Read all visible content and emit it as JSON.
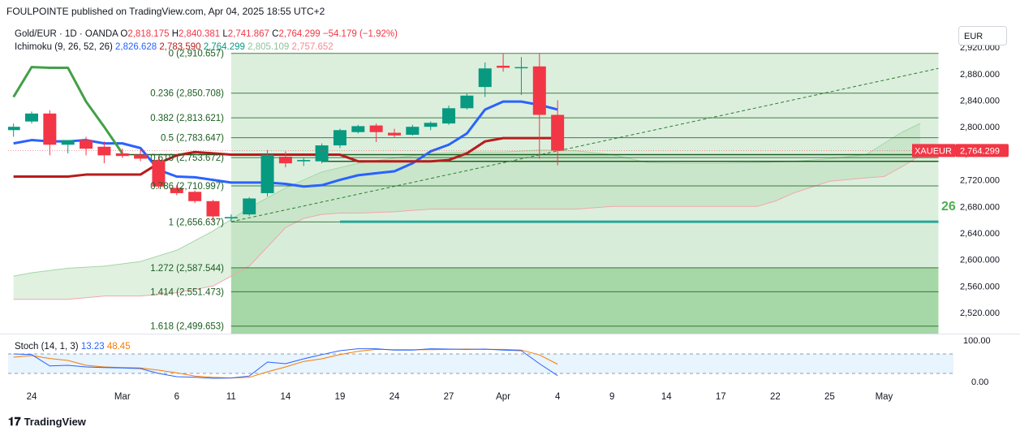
{
  "header": {
    "text": "FOULPOINTE published on TradingView.com, Apr 04, 2025 18:55 UTC+2"
  },
  "legend": {
    "symbol": "Gold/EUR · 1D · OANDA",
    "o_label": "O",
    "o": "2,818.175",
    "h_label": "H",
    "h": "2,840.381",
    "l_label": "L",
    "l": "2,741.867",
    "c_label": "C",
    "c": "2,764.299",
    "change": "−54.179 (−1.92%)",
    "ichimoku_label": "Ichimoku (9, 26, 52, 26)",
    "ichimoku_values": [
      "2,826.628",
      "2,783.590",
      "2,764.299",
      "2,805.109",
      "2,757.652"
    ]
  },
  "currency": "EUR",
  "symbol_tag": "XAUEUR",
  "last_price_tag": "2,764.299",
  "watermark_fragment": "26",
  "stoch": {
    "label": "Stoch (14, 1, 3)",
    "k": "13.23",
    "d": "48.45",
    "axis_labels": [
      "100.00",
      "0.00"
    ]
  },
  "x_axis_labels": [
    "24",
    "Mar",
    "6",
    "11",
    "14",
    "19",
    "24",
    "27",
    "Apr",
    "4",
    "9",
    "14",
    "17",
    "22",
    "25",
    "May"
  ],
  "brand": "TradingView",
  "colors": {
    "up": "#089981",
    "down": "#f23645",
    "tenkan": "#2962ff",
    "kijun": "#b71c1c",
    "chikou": "#43a047",
    "cloud": "#c8e6c9",
    "fib": "#1b5e20",
    "stoch_k": "#2962ff",
    "stoch_d": "#f57c00"
  },
  "chart_data": {
    "type": "candlestick",
    "title": "Gold/EUR · 1D · OANDA",
    "y_axis": {
      "ticks": [
        2520,
        2560,
        2600,
        2640,
        2680,
        2720,
        2760,
        2800,
        2840,
        2880,
        2920
      ],
      "tick_labels": [
        "2,520.000",
        "2,560.000",
        "2,600.000",
        "2,640.000",
        "2,680.000",
        "2,720.000",
        "2,760.000",
        "2,800.000",
        "2,840.000",
        "2,880.000",
        "2,920.000"
      ],
      "range": [
        2490,
        2945
      ]
    },
    "x_axis": {
      "ticks": [
        {
          "label": "24",
          "day": 0
        },
        {
          "label": "Mar",
          "day": 5
        },
        {
          "label": "6",
          "day": 8
        },
        {
          "label": "11",
          "day": 11
        },
        {
          "label": "14",
          "day": 14
        },
        {
          "label": "19",
          "day": 17
        },
        {
          "label": "24",
          "day": 20
        },
        {
          "label": "27",
          "day": 23
        },
        {
          "label": "Apr",
          "day": 26
        },
        {
          "label": "4",
          "day": 29
        },
        {
          "label": "9",
          "day": 32
        },
        {
          "label": "14",
          "day": 35
        },
        {
          "label": "17",
          "day": 38
        },
        {
          "label": "22",
          "day": 41
        },
        {
          "label": "25",
          "day": 44
        },
        {
          "label": "May",
          "day": 47
        }
      ]
    },
    "candles": [
      {
        "day": -1,
        "o": 2795,
        "h": 2805,
        "l": 2785,
        "c": 2800
      },
      {
        "day": 0,
        "o": 2808,
        "h": 2823,
        "l": 2805,
        "c": 2820
      },
      {
        "day": 1,
        "o": 2820,
        "h": 2825,
        "l": 2757,
        "c": 2773
      },
      {
        "day": 2,
        "o": 2773,
        "h": 2778,
        "l": 2760,
        "c": 2780
      },
      {
        "day": 3,
        "o": 2780,
        "h": 2785,
        "l": 2757,
        "c": 2767
      },
      {
        "day": 4,
        "o": 2770,
        "h": 2778,
        "l": 2745,
        "c": 2757
      },
      {
        "day": 5,
        "o": 2760,
        "h": 2767,
        "l": 2753,
        "c": 2756
      },
      {
        "day": 6,
        "o": 2758,
        "h": 2765,
        "l": 2748,
        "c": 2752
      },
      {
        "day": 7,
        "o": 2750,
        "h": 2755,
        "l": 2707,
        "c": 2710
      },
      {
        "day": 8,
        "o": 2708,
        "h": 2712,
        "l": 2697,
        "c": 2700
      },
      {
        "day": 9,
        "o": 2702,
        "h": 2704,
        "l": 2685,
        "c": 2688
      },
      {
        "day": 10,
        "o": 2688,
        "h": 2690,
        "l": 2657,
        "c": 2665
      },
      {
        "day": 11,
        "o": 2662,
        "h": 2668,
        "l": 2657,
        "c": 2664
      },
      {
        "day": 12,
        "o": 2668,
        "h": 2694,
        "l": 2666,
        "c": 2692
      },
      {
        "day": 13,
        "o": 2700,
        "h": 2765,
        "l": 2695,
        "c": 2758
      },
      {
        "day": 14,
        "o": 2755,
        "h": 2763,
        "l": 2739,
        "c": 2745
      },
      {
        "day": 15,
        "o": 2748,
        "h": 2753,
        "l": 2741,
        "c": 2750
      },
      {
        "day": 16,
        "o": 2748,
        "h": 2775,
        "l": 2745,
        "c": 2772
      },
      {
        "day": 17,
        "o": 2772,
        "h": 2797,
        "l": 2768,
        "c": 2795
      },
      {
        "day": 18,
        "o": 2792,
        "h": 2803,
        "l": 2790,
        "c": 2801
      },
      {
        "day": 19,
        "o": 2802,
        "h": 2805,
        "l": 2777,
        "c": 2792
      },
      {
        "day": 20,
        "o": 2791,
        "h": 2797,
        "l": 2784,
        "c": 2787
      },
      {
        "day": 21,
        "o": 2788,
        "h": 2803,
        "l": 2787,
        "c": 2800
      },
      {
        "day": 22,
        "o": 2800,
        "h": 2808,
        "l": 2795,
        "c": 2806
      },
      {
        "day": 23,
        "o": 2805,
        "h": 2832,
        "l": 2803,
        "c": 2828
      },
      {
        "day": 24,
        "o": 2828,
        "h": 2850,
        "l": 2826,
        "c": 2847
      },
      {
        "day": 25,
        "o": 2860,
        "h": 2897,
        "l": 2845,
        "c": 2888
      },
      {
        "day": 26,
        "o": 2892,
        "h": 2910,
        "l": 2883,
        "c": 2889
      },
      {
        "day": 27,
        "o": 2890,
        "h": 2905,
        "l": 2848,
        "c": 2890
      },
      {
        "day": 28,
        "o": 2891,
        "h": 2910,
        "l": 2752,
        "c": 2818
      },
      {
        "day": 29,
        "o": 2818,
        "h": 2840,
        "l": 2742,
        "c": 2764
      }
    ],
    "series": [
      {
        "name": "Tenkan",
        "points": [
          [
            -1,
            2775
          ],
          [
            0,
            2780
          ],
          [
            1,
            2778
          ],
          [
            2,
            2778
          ],
          [
            3,
            2780
          ],
          [
            4,
            2775
          ],
          [
            5,
            2775
          ],
          [
            6,
            2768
          ],
          [
            7,
            2735
          ],
          [
            8,
            2725
          ],
          [
            9,
            2724
          ],
          [
            10,
            2720
          ],
          [
            11,
            2716
          ],
          [
            12,
            2716
          ],
          [
            13,
            2716
          ],
          [
            14,
            2714
          ],
          [
            15,
            2710
          ],
          [
            16,
            2712
          ],
          [
            17,
            2720
          ],
          [
            18,
            2727
          ],
          [
            19,
            2730
          ],
          [
            20,
            2733
          ],
          [
            21,
            2745
          ],
          [
            22,
            2763
          ],
          [
            23,
            2773
          ],
          [
            24,
            2790
          ],
          [
            25,
            2826
          ],
          [
            26,
            2838
          ],
          [
            27,
            2838
          ],
          [
            28,
            2833
          ],
          [
            29,
            2826
          ]
        ]
      },
      {
        "name": "Kijun",
        "points": [
          [
            -1,
            2725
          ],
          [
            0,
            2725
          ],
          [
            1,
            2725
          ],
          [
            2,
            2725
          ],
          [
            3,
            2728
          ],
          [
            4,
            2728
          ],
          [
            5,
            2728
          ],
          [
            6,
            2728
          ],
          [
            7,
            2745
          ],
          [
            8,
            2757
          ],
          [
            9,
            2762
          ],
          [
            10,
            2760
          ],
          [
            11,
            2758
          ],
          [
            12,
            2758
          ],
          [
            13,
            2758
          ],
          [
            14,
            2758
          ],
          [
            15,
            2758
          ],
          [
            16,
            2758
          ],
          [
            17,
            2758
          ],
          [
            18,
            2748
          ],
          [
            19,
            2748
          ],
          [
            20,
            2748
          ],
          [
            21,
            2748
          ],
          [
            22,
            2748
          ],
          [
            23,
            2750
          ],
          [
            24,
            2760
          ],
          [
            25,
            2778
          ],
          [
            26,
            2783
          ],
          [
            27,
            2783
          ],
          [
            28,
            2783
          ],
          [
            29,
            2783
          ]
        ]
      },
      {
        "name": "Chikou",
        "points": [
          [
            -1,
            2845
          ],
          [
            0,
            2890
          ],
          [
            1,
            2889
          ],
          [
            2,
            2889
          ],
          [
            3,
            2838
          ],
          [
            4,
            2800
          ],
          [
            5,
            2760
          ]
        ]
      }
    ],
    "cloud": {
      "span_a": [
        [
          -1,
          2575
        ],
        [
          0,
          2580
        ],
        [
          2,
          2587
        ],
        [
          4,
          2590
        ],
        [
          6,
          2597
        ],
        [
          8,
          2614
        ],
        [
          10,
          2643
        ],
        [
          12,
          2678
        ],
        [
          14,
          2708
        ],
        [
          15,
          2720
        ],
        [
          16,
          2732
        ],
        [
          18,
          2745
        ],
        [
          20,
          2753
        ],
        [
          22,
          2760
        ],
        [
          24,
          2762
        ],
        [
          26,
          2762
        ],
        [
          28,
          2765
        ],
        [
          30,
          2764
        ],
        [
          32,
          2758
        ],
        [
          34,
          2746
        ],
        [
          36,
          2745
        ],
        [
          38,
          2745
        ],
        [
          40,
          2746
        ],
        [
          42,
          2748
        ],
        [
          44,
          2752
        ],
        [
          46,
          2758
        ],
        [
          47,
          2775
        ],
        [
          48,
          2792
        ],
        [
          49,
          2805
        ]
      ],
      "span_b": [
        [
          -1,
          2540
        ],
        [
          2,
          2540
        ],
        [
          4,
          2545
        ],
        [
          6,
          2545
        ],
        [
          8,
          2550
        ],
        [
          10,
          2560
        ],
        [
          12,
          2590
        ],
        [
          14,
          2648
        ],
        [
          15,
          2662
        ],
        [
          16,
          2668
        ],
        [
          17,
          2670
        ],
        [
          18,
          2670
        ],
        [
          20,
          2672
        ],
        [
          22,
          2676
        ],
        [
          24,
          2676
        ],
        [
          26,
          2676
        ],
        [
          28,
          2676
        ],
        [
          30,
          2676
        ],
        [
          32,
          2680
        ],
        [
          34,
          2680
        ],
        [
          36,
          2680
        ],
        [
          38,
          2680
        ],
        [
          40,
          2680
        ],
        [
          41,
          2688
        ],
        [
          42,
          2700
        ],
        [
          44,
          2718
        ],
        [
          46,
          2723
        ],
        [
          47,
          2725
        ],
        [
          48,
          2740
        ],
        [
          49,
          2757
        ]
      ]
    },
    "fibonacci": {
      "levels": [
        {
          "ratio": "0",
          "label": "0 (2,910.657)",
          "price": 2910.657
        },
        {
          "ratio": "0.236",
          "label": "0.236 (2,850.708)",
          "price": 2850.708
        },
        {
          "ratio": "0.382",
          "label": "0.382 (2,813.621)",
          "price": 2813.621
        },
        {
          "ratio": "0.5",
          "label": "0.5 (2,783.647)",
          "price": 2783.647
        },
        {
          "ratio": "0.618",
          "label": "0.618 (2,753.672)",
          "price": 2753.672
        },
        {
          "ratio": "0.786",
          "label": "0.786 (2,710.997)",
          "price": 2710.997
        },
        {
          "ratio": "1",
          "label": "1 (2,656.637)",
          "price": 2656.637
        },
        {
          "ratio": "1.272",
          "label": "1.272 (2,587.544)",
          "price": 2587.544
        },
        {
          "ratio": "1.414",
          "label": "1.414 (2,551.473)",
          "price": 2551.473
        },
        {
          "ratio": "1.618",
          "label": "1.618 (2,499.653)",
          "price": 2499.653
        }
      ],
      "start_day": 11,
      "end_day": 50
    },
    "horizontal_lines": [
      {
        "price": 2758,
        "from_day": 5,
        "to_day": 50
      },
      {
        "price": 2748,
        "from_day": 16,
        "to_day": 50
      },
      {
        "price": 2657,
        "from_day": 17,
        "to_day": 50
      }
    ],
    "trend_line": {
      "from": [
        11,
        2657
      ],
      "to": [
        50,
        2888
      ]
    },
    "stoch_k": [
      [
        -1,
        80
      ],
      [
        0,
        78
      ],
      [
        1,
        43
      ],
      [
        2,
        45
      ],
      [
        3,
        40
      ],
      [
        4,
        38
      ],
      [
        5,
        37
      ],
      [
        6,
        35
      ],
      [
        7,
        20
      ],
      [
        8,
        10
      ],
      [
        9,
        8
      ],
      [
        10,
        5
      ],
      [
        11,
        6
      ],
      [
        12,
        12
      ],
      [
        13,
        55
      ],
      [
        14,
        50
      ],
      [
        15,
        65
      ],
      [
        16,
        78
      ],
      [
        17,
        90
      ],
      [
        18,
        96
      ],
      [
        19,
        96
      ],
      [
        20,
        92
      ],
      [
        21,
        92
      ],
      [
        22,
        96
      ],
      [
        23,
        95
      ],
      [
        24,
        94
      ],
      [
        25,
        95
      ],
      [
        26,
        92
      ],
      [
        27,
        90
      ],
      [
        28,
        50
      ],
      [
        29,
        13.23
      ]
    ],
    "stoch_d": [
      [
        -1,
        70
      ],
      [
        0,
        75
      ],
      [
        1,
        66
      ],
      [
        2,
        60
      ],
      [
        3,
        45
      ],
      [
        4,
        40
      ],
      [
        5,
        38
      ],
      [
        6,
        37
      ],
      [
        7,
        30
      ],
      [
        8,
        22
      ],
      [
        9,
        12
      ],
      [
        10,
        8
      ],
      [
        11,
        6
      ],
      [
        12,
        8
      ],
      [
        13,
        25
      ],
      [
        14,
        40
      ],
      [
        15,
        57
      ],
      [
        16,
        65
      ],
      [
        17,
        78
      ],
      [
        18,
        88
      ],
      [
        19,
        94
      ],
      [
        20,
        93
      ],
      [
        21,
        93
      ],
      [
        22,
        93
      ],
      [
        23,
        94
      ],
      [
        24,
        95
      ],
      [
        25,
        94
      ],
      [
        26,
        94
      ],
      [
        27,
        92
      ],
      [
        28,
        77
      ],
      [
        29,
        48.45
      ]
    ],
    "stoch_range": [
      0,
      100
    ],
    "stoch_bands": [
      80,
      20
    ]
  }
}
